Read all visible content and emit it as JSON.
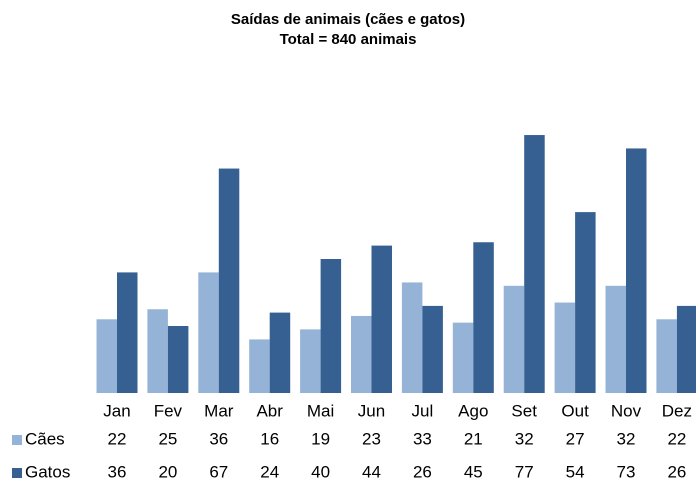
{
  "chart_data": {
    "type": "bar",
    "title": "Saídas de animais (cães e gatos)",
    "subtitle": "Total = 840 animais",
    "categories": [
      "Jan",
      "Fev",
      "Mar",
      "Abr",
      "Mai",
      "Jun",
      "Jul",
      "Ago",
      "Set",
      "Out",
      "Nov",
      "Dez"
    ],
    "series": [
      {
        "name": "Cães",
        "color": "#95b3d7",
        "values": [
          22,
          25,
          36,
          16,
          19,
          23,
          33,
          21,
          32,
          27,
          32,
          22
        ]
      },
      {
        "name": "Gatos",
        "color": "#366092",
        "values": [
          36,
          20,
          67,
          24,
          40,
          44,
          26,
          45,
          77,
          54,
          73,
          26
        ]
      }
    ]
  }
}
